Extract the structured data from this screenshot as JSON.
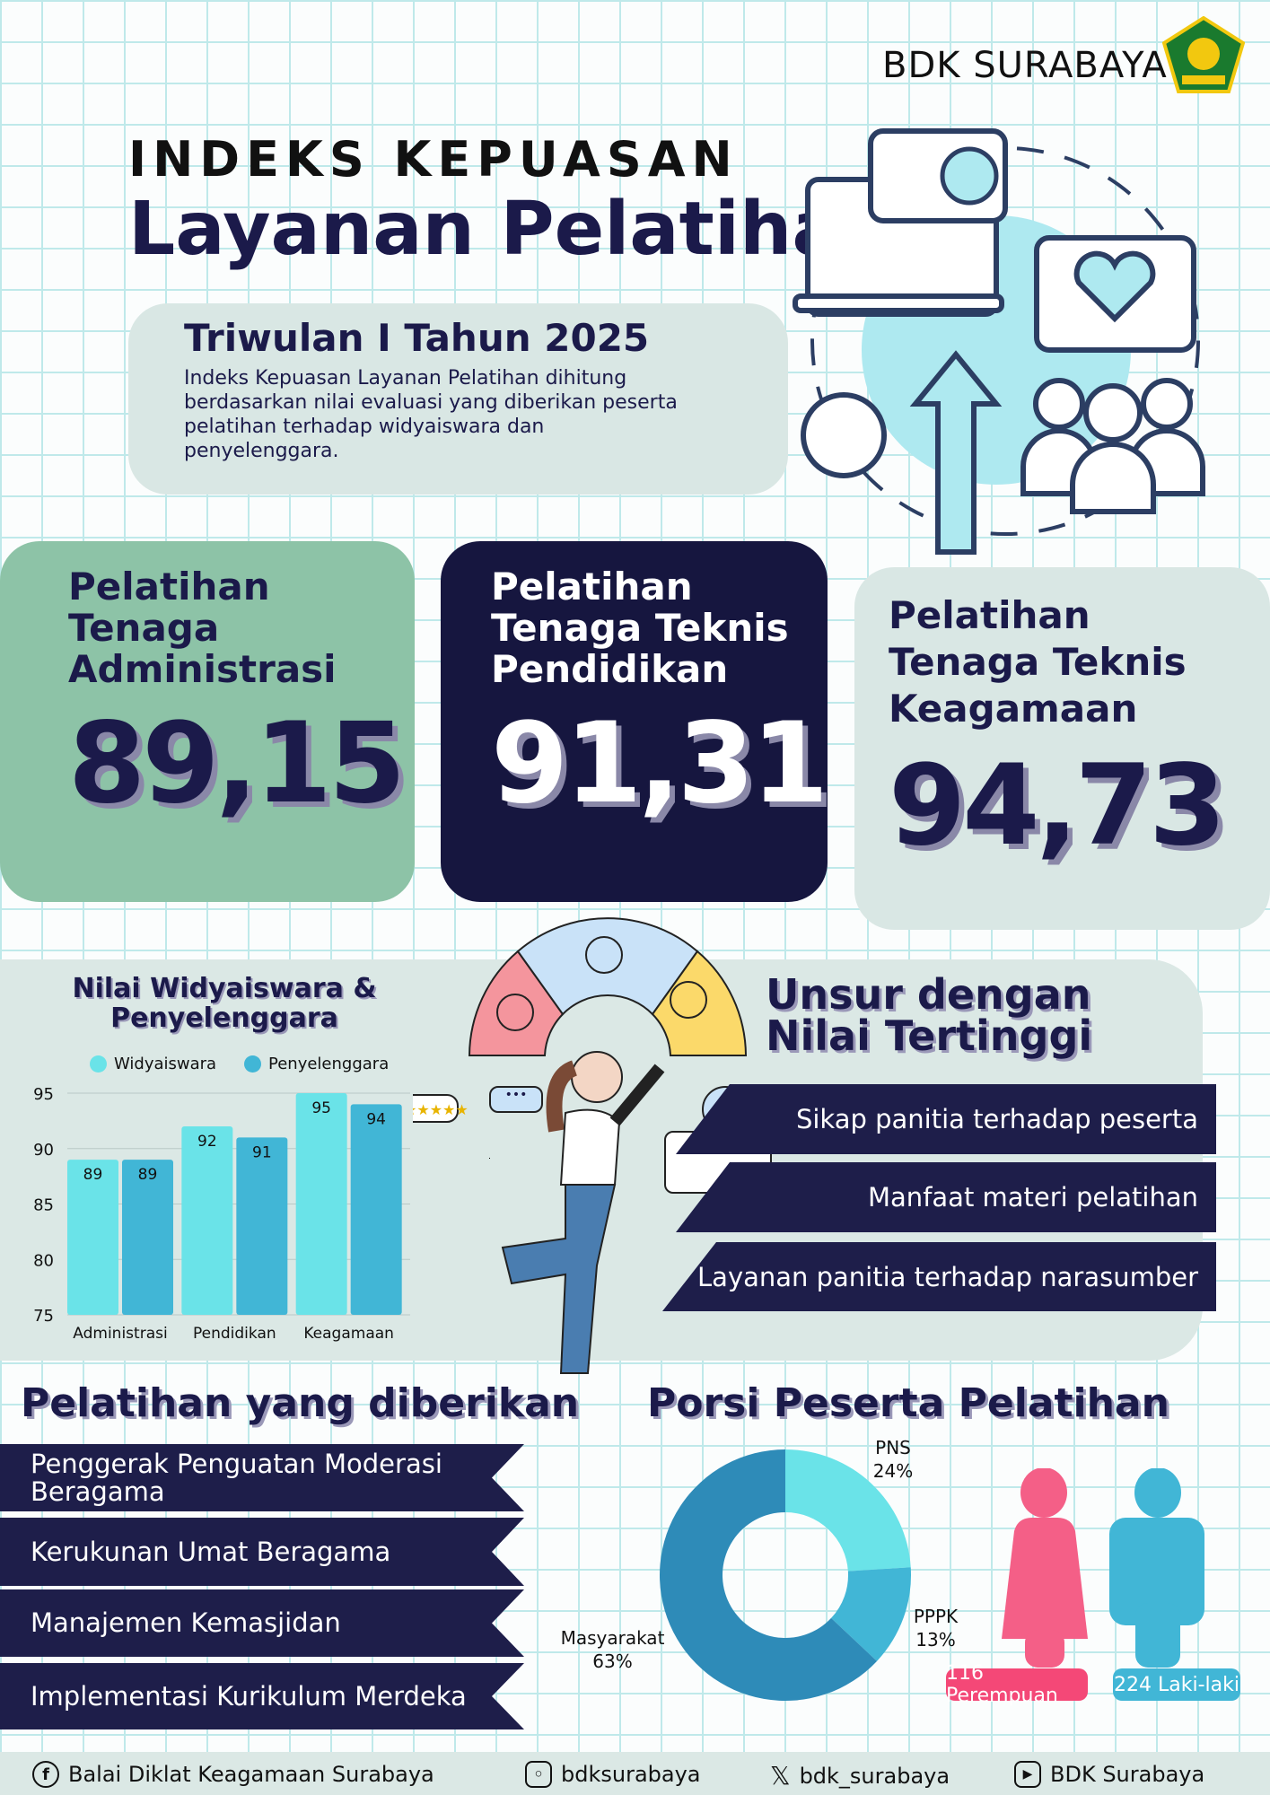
{
  "header": {
    "brand": "BDK SURABAYA",
    "logo_text": "KEMENTERIAN AGAMA",
    "title_top": "INDEKS KEPUASAN",
    "title_main": "Layanan Pelatihan"
  },
  "period": {
    "title": "Triwulan I Tahun 2025",
    "description": "Indeks Kepuasan Layanan Pelatihan dihitung berdasarkan nilai evaluasi yang diberikan peserta pelatihan terhadap widyaiswara dan penyelenggara."
  },
  "cards": [
    {
      "title": "Pelatihan Tenaga Administrasi",
      "value": "89,15",
      "color": "#8dc3a7"
    },
    {
      "title": "Pelatihan Tenaga Teknis Pendidikan",
      "value": "91,31",
      "color": "#16163f"
    },
    {
      "title": "Pelatihan Tenaga Teknis Keagamaan",
      "value": "94,73",
      "color": "#d9e7e4"
    }
  ],
  "chart_data": [
    {
      "type": "bar",
      "title": "Nilai Widyaiswara & Penyelenggara",
      "categories": [
        "Administrasi",
        "Pendidikan",
        "Keagamaan"
      ],
      "series": [
        {
          "name": "Widyaiswara",
          "values": [
            89,
            92,
            95
          ],
          "color": "#6ae3e8"
        },
        {
          "name": "Penyelenggara",
          "values": [
            89,
            91,
            94
          ],
          "color": "#41b6d6"
        }
      ],
      "ylim": [
        75,
        95
      ],
      "yticks": [
        "95",
        "90",
        "85",
        "80",
        "75"
      ],
      "grid": true,
      "legend": "top"
    },
    {
      "type": "pie",
      "title": "Porsi Peserta Pelatihan",
      "donut": true,
      "slices": [
        {
          "label": "PNS",
          "value": 24,
          "text": "24%",
          "color": "#6ae3e8"
        },
        {
          "label": "PPPK",
          "value": 13,
          "text": "13%",
          "color": "#41b6d6"
        },
        {
          "label": "Masyarakat",
          "value": 63,
          "text": "63%",
          "color": "#2e8bb8"
        }
      ]
    }
  ],
  "unsur": {
    "title": "Unsur dengan Nilai Tertinggi",
    "items": [
      "Sikap panitia terhadap peserta",
      "Manfaat materi pelatihan",
      "Layanan panitia terhadap narasumber"
    ]
  },
  "pelatihan": {
    "title": "Pelatihan yang diberikan",
    "items": [
      "Penggerak Penguatan Moderasi Beragama",
      "Kerukunan Umat Beragama",
      "Manajemen Kemasjidan",
      "Implementasi Kurikulum Merdeka"
    ]
  },
  "gender": {
    "female": "116 Perempuan",
    "male": "224 Laki-laki",
    "female_color": "#f45f87",
    "male_color": "#41b6d6"
  },
  "footer": {
    "facebook": "Balai Diklat Keagamaan Surabaya",
    "instagram": "bdksurabaya",
    "x": "bdk_surabaya",
    "youtube": "BDK Surabaya"
  }
}
